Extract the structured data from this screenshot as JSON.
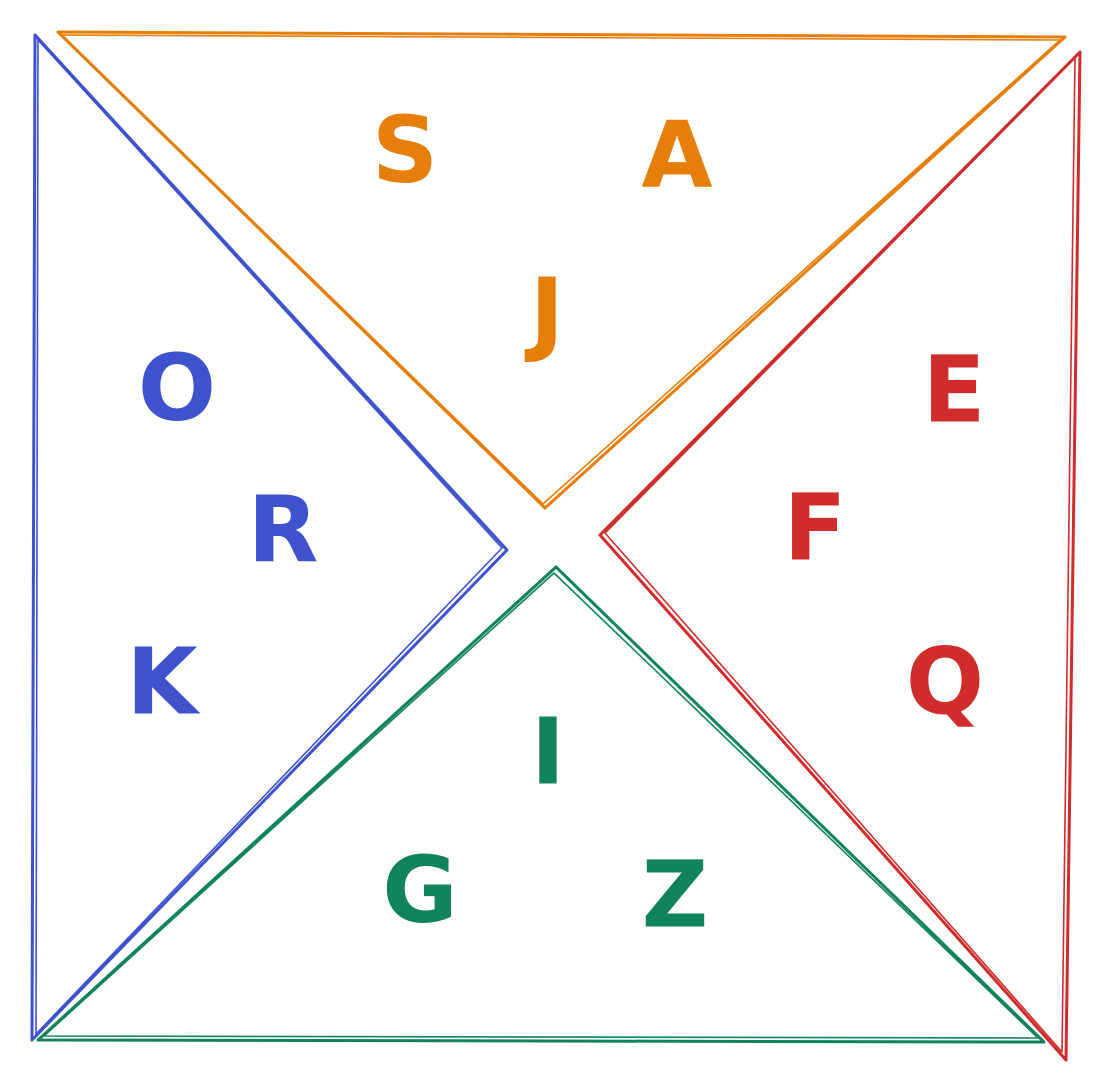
{
  "regions": [
    {
      "key": "top",
      "color": "#e67e0a",
      "letters": [
        "S",
        "A",
        "J"
      ]
    },
    {
      "key": "left",
      "color": "#3d52cc",
      "letters": [
        "O",
        "R",
        "K"
      ]
    },
    {
      "key": "right",
      "color": "#d02c2c",
      "letters": [
        "E",
        "F",
        "Q"
      ]
    },
    {
      "key": "bottom",
      "color": "#10835a",
      "letters": [
        "I",
        "G",
        "Z"
      ]
    }
  ]
}
